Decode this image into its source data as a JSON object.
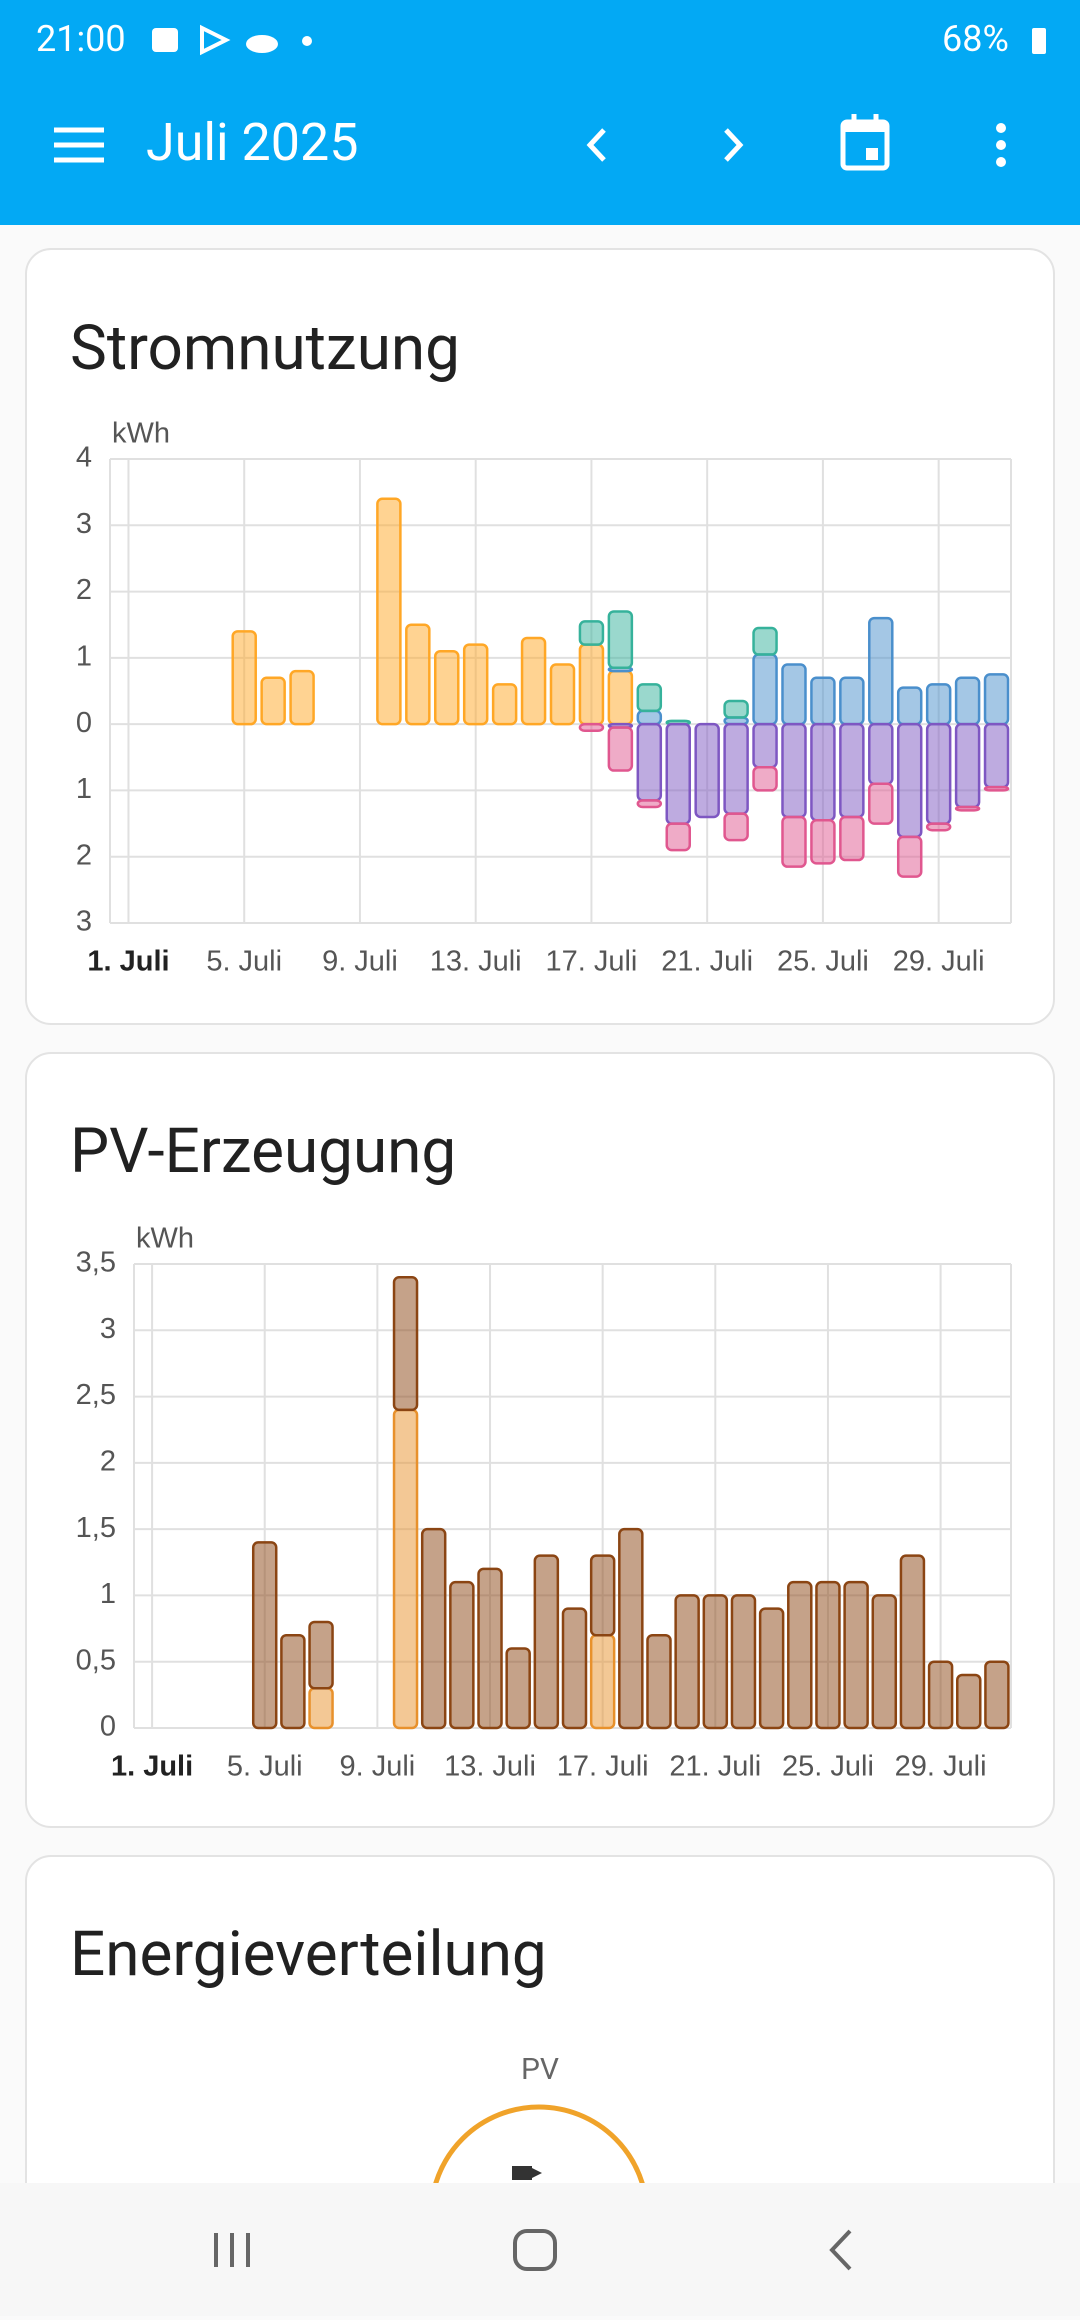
{
  "status_bar": {
    "time": "21:00",
    "battery": "68%"
  },
  "app_bar": {
    "title": "Juli 2025"
  },
  "chart_data": [
    {
      "type": "bar",
      "stacked": true,
      "title": "Stromnutzung",
      "y_label": "kWh",
      "categories": [
        "1. Juli",
        null,
        null,
        null,
        "5. Juli",
        null,
        null,
        null,
        "9. Juli",
        null,
        null,
        null,
        "13. Juli",
        null,
        null,
        null,
        "17. Juli",
        null,
        null,
        null,
        "21. Juli",
        null,
        null,
        null,
        "25. Juli",
        null,
        null,
        null,
        "29. Juli",
        null,
        null
      ],
      "ylim": [
        -3,
        4
      ],
      "yticks": [
        {
          "value": -3,
          "label": "3"
        },
        {
          "value": -2,
          "label": "2"
        },
        {
          "value": -1,
          "label": "1"
        },
        0,
        1,
        2,
        3,
        4
      ],
      "grid": true,
      "series": [
        {
          "color": "#ffa726",
          "values": [
            null,
            null,
            null,
            null,
            1.4,
            0.7,
            0.8,
            null,
            null,
            3.4,
            1.5,
            1.1,
            1.2,
            0.6,
            1.3,
            0.9,
            1.2,
            0.8,
            null,
            null,
            null,
            null,
            null,
            null,
            null,
            null,
            null,
            null,
            null,
            null,
            null
          ]
        },
        {
          "color": "#4a8fcc",
          "values": [
            null,
            null,
            null,
            null,
            null,
            null,
            null,
            null,
            null,
            null,
            null,
            null,
            null,
            null,
            null,
            null,
            null,
            0.05,
            0.2,
            null,
            null,
            0.1,
            1.05,
            0.9,
            0.7,
            0.7,
            1.6,
            0.55,
            0.6,
            0.7,
            0.75
          ]
        },
        {
          "color": "#36b29b",
          "values": [
            null,
            null,
            null,
            null,
            null,
            null,
            null,
            null,
            null,
            null,
            null,
            null,
            null,
            null,
            null,
            null,
            0.35,
            0.85,
            0.4,
            0.05,
            null,
            0.25,
            0.4,
            null,
            null,
            null,
            null,
            null,
            null,
            null,
            null
          ]
        },
        {
          "color": "#7e57c2",
          "values": [
            null,
            null,
            null,
            null,
            null,
            null,
            null,
            null,
            null,
            null,
            null,
            null,
            null,
            null,
            null,
            null,
            null,
            -0.05,
            -1.15,
            -1.5,
            -1.4,
            -1.35,
            -0.65,
            -1.4,
            -1.45,
            -1.4,
            -0.9,
            -1.7,
            -1.5,
            -1.25,
            -0.95
          ]
        },
        {
          "color": "#e0578f",
          "values": [
            null,
            null,
            null,
            null,
            null,
            null,
            null,
            null,
            null,
            null,
            null,
            null,
            null,
            null,
            null,
            null,
            -0.1,
            -0.65,
            -0.1,
            -0.4,
            null,
            -0.4,
            -0.35,
            -0.75,
            -0.65,
            -0.65,
            -0.6,
            -0.6,
            -0.1,
            -0.05,
            -0.05
          ]
        }
      ]
    },
    {
      "type": "bar",
      "stacked": true,
      "title": "PV-Erzeugung",
      "y_label": "kWh",
      "categories": [
        "1. Juli",
        null,
        null,
        null,
        "5. Juli",
        null,
        null,
        null,
        "9. Juli",
        null,
        null,
        null,
        "13. Juli",
        null,
        null,
        null,
        "17. Juli",
        null,
        null,
        null,
        "21. Juli",
        null,
        null,
        null,
        "25. Juli",
        null,
        null,
        null,
        "29. Juli",
        null,
        null
      ],
      "ylim": [
        0,
        3.5
      ],
      "yticks": [
        0,
        {
          "value": 0.5,
          "label": "0,5"
        },
        1,
        {
          "value": 1.5,
          "label": "1,5"
        },
        2,
        {
          "value": 2.5,
          "label": "2,5"
        },
        3,
        {
          "value": 3.5,
          "label": "3,5"
        }
      ],
      "grid": true,
      "series": [
        {
          "color": "#e8912c",
          "values": [
            null,
            null,
            null,
            null,
            null,
            null,
            0.3,
            null,
            null,
            2.4,
            null,
            null,
            null,
            null,
            null,
            null,
            0.7,
            null,
            null,
            null,
            null,
            null,
            null,
            null,
            null,
            null,
            null,
            null,
            null,
            null,
            null
          ]
        },
        {
          "color": "#8b4513",
          "values": [
            null,
            null,
            null,
            null,
            1.4,
            0.7,
            0.5,
            null,
            null,
            1.0,
            1.5,
            1.1,
            1.2,
            0.6,
            1.3,
            0.9,
            0.6,
            1.5,
            0.7,
            1.0,
            1.0,
            1.0,
            0.9,
            1.1,
            1.1,
            1.1,
            1.0,
            1.3,
            0.5,
            0.4,
            0.5
          ]
        }
      ]
    }
  ],
  "energy_distribution": {
    "title": "Energieverteilung",
    "nodes": [
      {
        "label": "PV"
      }
    ]
  }
}
